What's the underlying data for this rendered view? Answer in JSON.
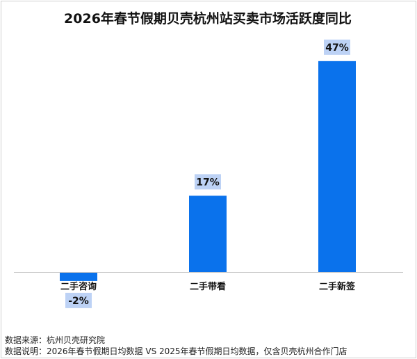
{
  "chart_data": {
    "type": "bar",
    "title": "2026年春节假期贝壳杭州站买卖市场活跃度同比",
    "categories": [
      "二手咨询",
      "二手带看",
      "二手新签"
    ],
    "values": [
      -2,
      17,
      47
    ],
    "labels": [
      "-2%",
      "17%",
      "47%"
    ],
    "unit": "%",
    "ylim": [
      -5,
      50
    ],
    "grid": false,
    "bar_color": "#0a72ec",
    "label_bg_color": "#bdd2f5",
    "axis_color": "#c8c8c8"
  },
  "footer": {
    "source": "数据来源：杭州贝壳研究院",
    "note": "数据说明：2026年春节假期日均数据 VS 2025年春节假期日均数据，仅含贝壳杭州合作门店"
  }
}
